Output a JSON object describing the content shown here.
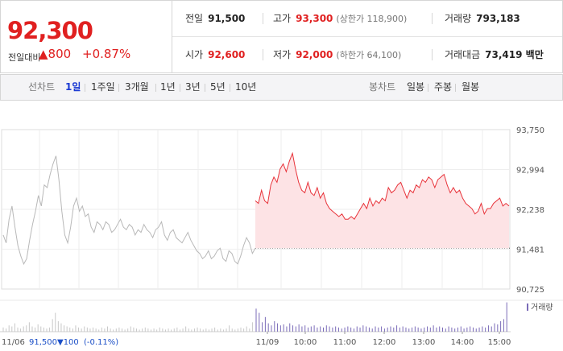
{
  "quote": {
    "price": "92,300",
    "diff_label": "전일대비",
    "diff_value": "▲800",
    "diff_pct": "+0.87%",
    "prev_close_label": "전일",
    "prev_close": "91,500",
    "high_label": "고가",
    "high": "93,300",
    "upper_limit": "(상한가 118,900)",
    "volume_label": "거래량",
    "volume": "793,183",
    "open_label": "시가",
    "open": "92,600",
    "low_label": "저가",
    "low": "92,000",
    "lower_limit": "(하한가 64,100)",
    "amount_label": "거래대금",
    "amount": "73,419 백만"
  },
  "tabs": {
    "line_chart": "선차트",
    "periods": [
      "1일",
      "1주일",
      "3개월",
      "1년",
      "3년",
      "5년",
      "10년"
    ],
    "active": "1일",
    "candle_chart": "봉차트",
    "candles": [
      "일봉",
      "주봉",
      "월봉"
    ]
  },
  "chart_data": {
    "type": "line",
    "y_ticks": [
      "93,750",
      "92,994",
      "92,238",
      "91,481",
      "90,725"
    ],
    "ylim": [
      90725,
      93750
    ],
    "reference_line": 91500,
    "x_ticks": [
      "11/09",
      "10:00",
      "11:00",
      "12:00",
      "13:00",
      "14:00",
      "15:00"
    ],
    "volume_legend": "거래량",
    "footer_date": "11/06",
    "footer_close": "91,500",
    "footer_change": "▼100",
    "footer_pct": "(-0.11%)",
    "prev_day_series": [
      91750,
      91600,
      92050,
      92300,
      91900,
      91550,
      91350,
      91200,
      91300,
      91650,
      91950,
      92200,
      92500,
      92300,
      92700,
      92650,
      92900,
      93100,
      93250,
      92800,
      92200,
      91750,
      91600,
      91900,
      92300,
      92450,
      92200,
      92300,
      92100,
      92150,
      91900,
      91800,
      92000,
      91950,
      91850,
      92000,
      91950,
      91800,
      91850,
      91950,
      92050,
      91900,
      91850,
      91950,
      91900,
      91750,
      91850,
      91800,
      91950,
      91850,
      91800,
      91700,
      91850,
      91900,
      92000,
      91750,
      91650,
      91800,
      91850,
      91700,
      91650,
      91600,
      91700,
      91800,
      91650,
      91550,
      91450,
      91400,
      91300,
      91350,
      91450,
      91300,
      91350,
      91450,
      91500,
      91300,
      91250,
      91450,
      91400,
      91250,
      91200,
      91350,
      91550,
      91700,
      91600,
      91400,
      91500
    ],
    "today_series": [
      92400,
      92350,
      92600,
      92400,
      92350,
      92700,
      92850,
      92750,
      93000,
      93100,
      92950,
      93150,
      93300,
      93000,
      92750,
      92600,
      92550,
      92750,
      92550,
      92500,
      92650,
      92450,
      92550,
      92350,
      92250,
      92200,
      92150,
      92100,
      92150,
      92050,
      92050,
      92100,
      92050,
      92150,
      92250,
      92350,
      92250,
      92450,
      92300,
      92400,
      92350,
      92450,
      92400,
      92650,
      92550,
      92600,
      92700,
      92750,
      92600,
      92450,
      92600,
      92550,
      92700,
      92650,
      92800,
      92750,
      92850,
      92800,
      92650,
      92800,
      92850,
      92900,
      92700,
      92550,
      92650,
      92550,
      92600,
      92450,
      92350,
      92300,
      92250,
      92150,
      92200,
      92350,
      92150,
      92250,
      92250,
      92350,
      92400,
      92450,
      92300,
      92350,
      92300
    ],
    "prev_day_volume": [
      4,
      3,
      6,
      5,
      8,
      4,
      3,
      5,
      6,
      9,
      5,
      4,
      7,
      5,
      4,
      3,
      4,
      12,
      18,
      10,
      8,
      6,
      5,
      4,
      3,
      6,
      4,
      3,
      5,
      4,
      3,
      4,
      3,
      2,
      4,
      3,
      5,
      3,
      2,
      3,
      4,
      3,
      2,
      3,
      5,
      4,
      3,
      2,
      3,
      4,
      3,
      2,
      3,
      2,
      4,
      3,
      2,
      3,
      2,
      3,
      4,
      2,
      3,
      5,
      3,
      2,
      3,
      4,
      3,
      2,
      3,
      2,
      3,
      4,
      2,
      3,
      2,
      3,
      6,
      3,
      2,
      3,
      4,
      3,
      5,
      3,
      9
    ],
    "today_volume": [
      22,
      18,
      9,
      14,
      8,
      6,
      10,
      8,
      6,
      7,
      5,
      8,
      6,
      5,
      7,
      5,
      6,
      4,
      5,
      6,
      4,
      5,
      4,
      6,
      5,
      4,
      5,
      4,
      3,
      4,
      5,
      4,
      3,
      5,
      4,
      6,
      5,
      4,
      3,
      5,
      4,
      5,
      3,
      4,
      5,
      4,
      6,
      4,
      5,
      4,
      3,
      4,
      5,
      4,
      3,
      4,
      5,
      4,
      6,
      4,
      5,
      4,
      3,
      5,
      4,
      3,
      4,
      5,
      3,
      4,
      5,
      4,
      3,
      4,
      5,
      4,
      6,
      5,
      8,
      7,
      10,
      12,
      28
    ]
  }
}
